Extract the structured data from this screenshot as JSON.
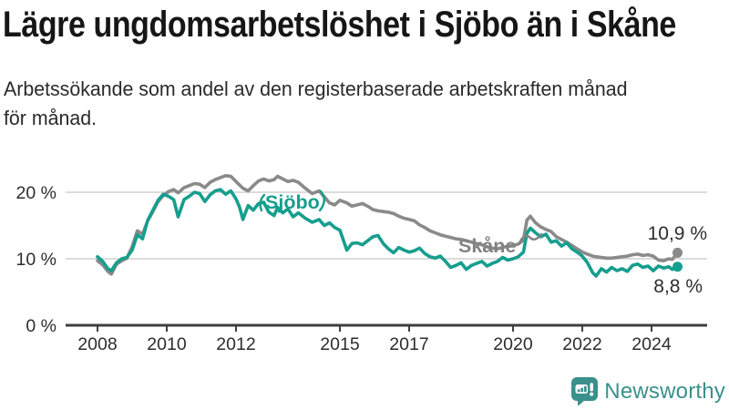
{
  "header": {
    "title": "Lägre ungdomsarbetslöshet i Sjöbo än i Skåne",
    "subtitle_lines": [
      "Arbetssökande som andel av den registerbaserade arbetskraften månad",
      "för månad."
    ]
  },
  "chart_data": {
    "type": "line",
    "title": "",
    "xlabel": "",
    "ylabel": "",
    "x_unit": "decimal_year",
    "xlim": [
      2007.9,
      2025.2
    ],
    "ylim": [
      0,
      25
    ],
    "grid": "horizontal",
    "legend_position": "inline-labels",
    "yticks": [
      {
        "value": 0,
        "label": "0 %"
      },
      {
        "value": 10,
        "label": "10 %"
      },
      {
        "value": 20,
        "label": "20 %"
      }
    ],
    "xticks": [
      {
        "value": 2008,
        "label": "2008"
      },
      {
        "value": 2010,
        "label": "2010"
      },
      {
        "value": 2012,
        "label": "2012"
      },
      {
        "value": 2015,
        "label": "2015"
      },
      {
        "value": 2017,
        "label": "2017"
      },
      {
        "value": 2020,
        "label": "2020"
      },
      {
        "value": 2022,
        "label": "2022"
      },
      {
        "value": 2024,
        "label": "2024"
      }
    ],
    "x": [
      2008.0,
      2008.15,
      2008.3,
      2008.4,
      2008.55,
      2008.7,
      2008.85,
      2009.0,
      2009.15,
      2009.3,
      2009.45,
      2009.6,
      2009.75,
      2009.9,
      2010.05,
      2010.2,
      2010.33,
      2010.5,
      2010.65,
      2010.8,
      2010.95,
      2011.1,
      2011.25,
      2011.4,
      2011.55,
      2011.7,
      2011.85,
      2012.0,
      2012.1,
      2012.2,
      2012.35,
      2012.5,
      2012.65,
      2012.8,
      2012.95,
      2013.1,
      2013.2,
      2013.35,
      2013.5,
      2013.65,
      2013.8,
      2014.0,
      2014.2,
      2014.4,
      2014.55,
      2014.7,
      2014.85,
      2015.0,
      2015.2,
      2015.35,
      2015.5,
      2015.65,
      2015.8,
      2015.95,
      2016.1,
      2016.25,
      2016.4,
      2016.55,
      2016.7,
      2016.85,
      2017.0,
      2017.15,
      2017.3,
      2017.45,
      2017.6,
      2017.75,
      2017.9,
      2018.05,
      2018.2,
      2018.35,
      2018.5,
      2018.65,
      2018.8,
      2018.95,
      2019.1,
      2019.25,
      2019.4,
      2019.55,
      2019.7,
      2019.85,
      2020.0,
      2020.15,
      2020.3,
      2020.4,
      2020.5,
      2020.65,
      2020.8,
      2020.95,
      2021.1,
      2021.25,
      2021.4,
      2021.55,
      2021.7,
      2021.85,
      2022.0,
      2022.15,
      2022.3,
      2022.4,
      2022.55,
      2022.7,
      2022.85,
      2023.0,
      2023.15,
      2023.3,
      2023.45,
      2023.6,
      2023.75,
      2023.9,
      2024.05,
      2024.2,
      2024.35,
      2024.5,
      2024.6,
      2024.75
    ],
    "series": [
      {
        "name": "Skåne",
        "color": "#8a8a8a",
        "label_color": "#828282",
        "end_label": "10,9 %",
        "end_value": 10.9,
        "values": [
          9.7,
          9.1,
          8.1,
          7.7,
          9.2,
          9.7,
          10.1,
          11.8,
          14.2,
          13.7,
          15.7,
          17.1,
          18.6,
          19.5,
          20.1,
          20.4,
          19.9,
          20.7,
          21.0,
          21.3,
          21.2,
          20.7,
          21.5,
          21.9,
          22.2,
          22.5,
          22.4,
          21.6,
          21.1,
          20.6,
          20.2,
          21.0,
          21.7,
          22.0,
          21.7,
          21.9,
          22.4,
          22.0,
          21.6,
          21.8,
          21.5,
          20.6,
          19.8,
          20.2,
          19.3,
          18.4,
          18.1,
          18.8,
          18.4,
          17.9,
          18.1,
          18.3,
          17.9,
          17.4,
          17.2,
          17.1,
          17.0,
          16.8,
          16.4,
          16.1,
          15.9,
          15.7,
          15.1,
          14.7,
          14.2,
          13.9,
          13.6,
          13.4,
          13.2,
          13.0,
          12.9,
          12.7,
          12.5,
          12.3,
          12.1,
          11.8,
          11.6,
          11.5,
          11.7,
          11.9,
          12.0,
          12.2,
          12.8,
          15.8,
          16.4,
          15.4,
          14.8,
          14.4,
          14.1,
          13.3,
          12.9,
          12.5,
          12.0,
          11.5,
          11.0,
          10.7,
          10.4,
          10.3,
          10.2,
          10.1,
          10.1,
          10.2,
          10.3,
          10.4,
          10.6,
          10.7,
          10.5,
          10.6,
          10.4,
          9.8,
          9.7,
          10.0,
          9.9,
          10.9
        ]
      },
      {
        "name": "Sjöbo",
        "color": "#169e8e",
        "label_color": "#169e8e",
        "end_label": "8,8 %",
        "end_value": 8.8,
        "values": [
          10.3,
          9.6,
          8.5,
          8.2,
          9.4,
          10.0,
          10.2,
          11.3,
          13.6,
          13.0,
          15.8,
          17.3,
          18.8,
          19.7,
          19.4,
          18.9,
          16.3,
          18.9,
          19.4,
          20.0,
          19.8,
          18.6,
          19.6,
          20.2,
          20.4,
          19.7,
          20.2,
          19.0,
          17.8,
          15.9,
          18.0,
          17.3,
          18.3,
          18.5,
          17.0,
          16.5,
          17.7,
          16.9,
          17.5,
          16.3,
          16.9,
          16.1,
          15.5,
          15.9,
          15.0,
          15.4,
          14.7,
          14.3,
          11.3,
          12.3,
          12.4,
          12.1,
          12.7,
          13.3,
          13.5,
          12.3,
          11.5,
          10.9,
          11.7,
          11.3,
          11.0,
          11.2,
          11.6,
          10.8,
          10.3,
          10.1,
          10.4,
          9.6,
          8.7,
          9.0,
          9.4,
          8.4,
          9.0,
          9.3,
          9.6,
          8.9,
          9.3,
          9.6,
          10.2,
          9.8,
          10.0,
          10.3,
          11.0,
          13.8,
          14.6,
          13.9,
          13.3,
          13.7,
          12.5,
          12.7,
          11.9,
          12.4,
          11.5,
          11.0,
          10.4,
          9.4,
          7.9,
          7.4,
          8.5,
          8.0,
          8.7,
          8.2,
          8.5,
          8.1,
          9.0,
          9.2,
          8.7,
          8.9,
          8.2,
          8.9,
          8.6,
          8.8,
          8.4,
          8.8
        ]
      }
    ],
    "axis_color": "#3f3f3f",
    "gridline_color": "#dcdcdc",
    "tick_label_color": "#2d2d2d",
    "value_label_color": "#2e2e2e"
  },
  "footer": {
    "brand": "Newsworthy",
    "brand_color": "#3a918c",
    "logo_icon": "speech-bubble-bar-chart-exclamation"
  }
}
